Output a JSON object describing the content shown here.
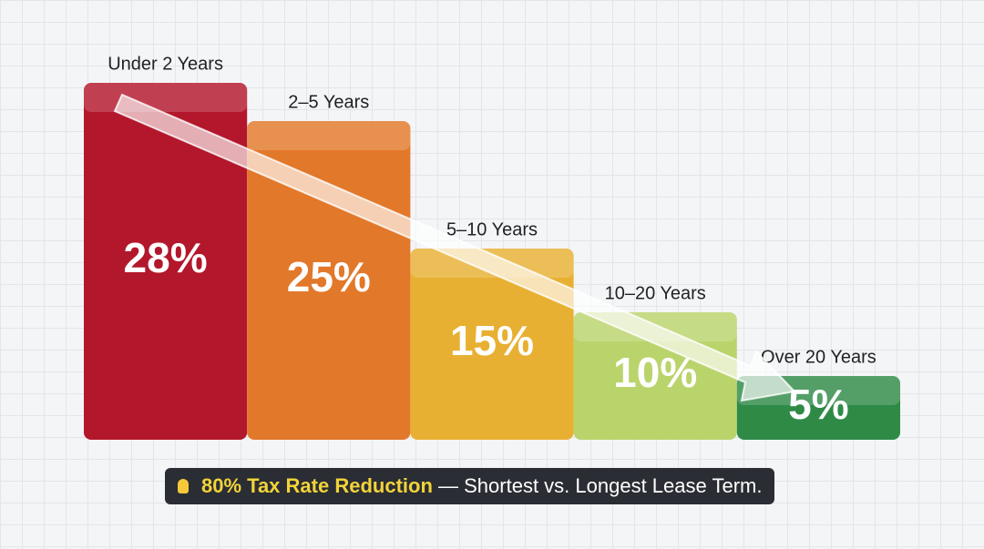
{
  "chart_data": {
    "type": "bar",
    "categories": [
      "Under 2 Years",
      "2–5 Years",
      "5–10 Years",
      "10–20 Years",
      "Over 20 Years"
    ],
    "values": [
      28,
      25,
      15,
      10,
      5
    ],
    "value_labels": [
      "28%",
      "25%",
      "15%",
      "10%",
      "5%"
    ],
    "colors": [
      "#b3172b",
      "#e2782a",
      "#e8b032",
      "#bad46c",
      "#2f8a46"
    ],
    "ylim": [
      0,
      28
    ],
    "annotation": {
      "highlight": "80% Tax Rate Reduction",
      "text": "— Shortest vs. Longest Lease Term."
    }
  }
}
